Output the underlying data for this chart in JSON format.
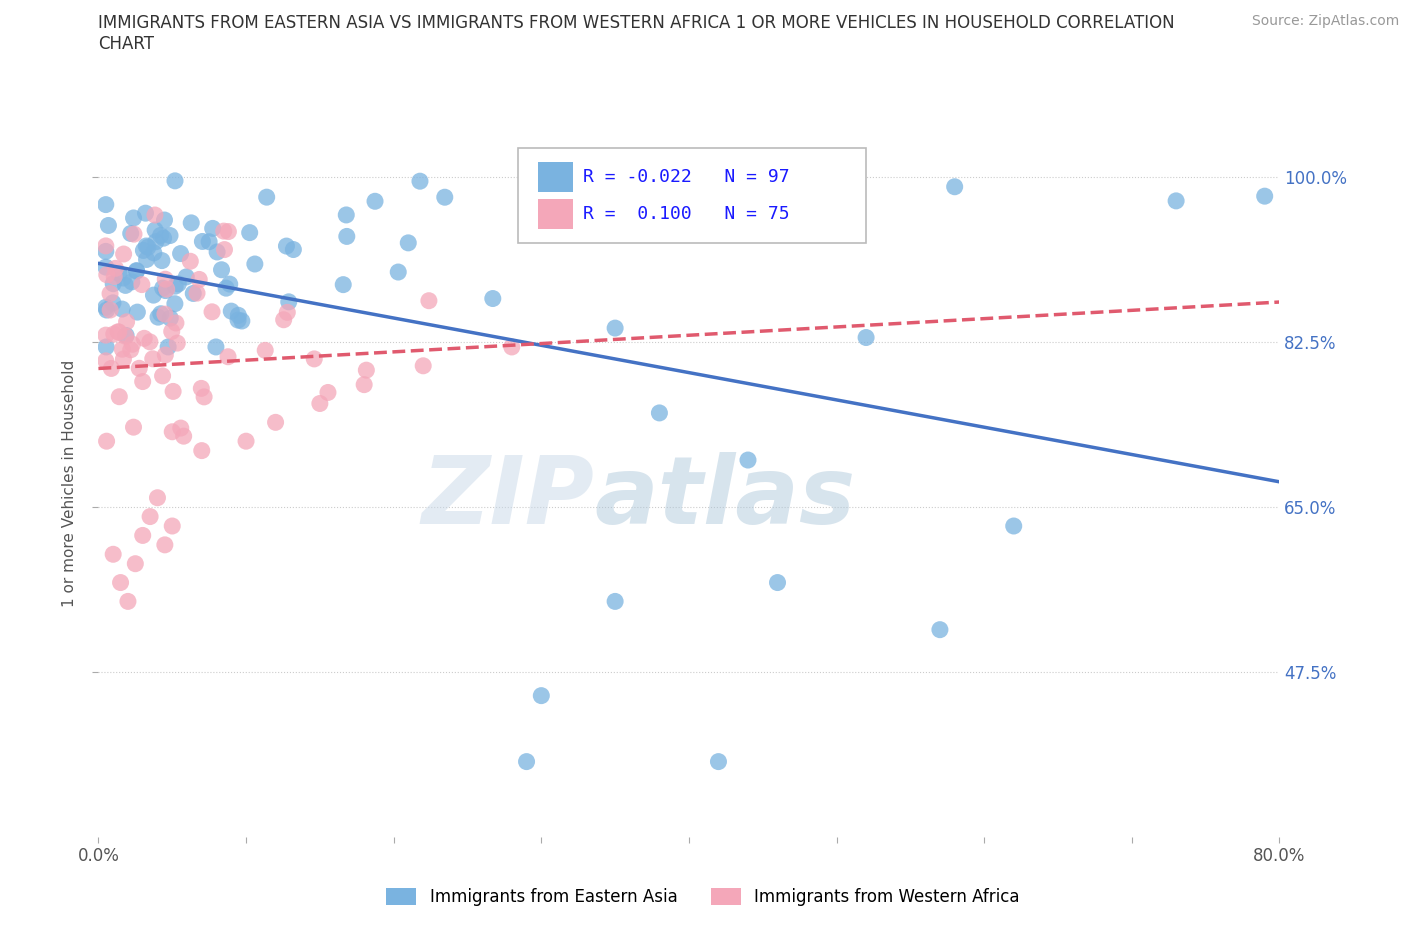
{
  "title_line1": "IMMIGRANTS FROM EASTERN ASIA VS IMMIGRANTS FROM WESTERN AFRICA 1 OR MORE VEHICLES IN HOUSEHOLD CORRELATION",
  "title_line2": "CHART",
  "source_text": "Source: ZipAtlas.com",
  "ylabel": "1 or more Vehicles in Household",
  "xlim": [
    0.0,
    0.8
  ],
  "ylim": [
    0.3,
    1.05
  ],
  "R_eastern": -0.022,
  "N_eastern": 97,
  "R_western": 0.1,
  "N_western": 75,
  "color_eastern": "#7ab3e0",
  "color_western": "#f4a7b9",
  "trendline_eastern_color": "#4472c4",
  "trendline_western_color": "#e05a6e",
  "legend_label_eastern": "Immigrants from Eastern Asia",
  "legend_label_western": "Immigrants from Western Africa",
  "watermark_zip": "ZIP",
  "watermark_atlas": "atlas",
  "background_color": "#ffffff",
  "ytick_positions": [
    0.475,
    0.65,
    0.825,
    1.0
  ],
  "ytick_labels": [
    "47.5%",
    "65.0%",
    "82.5%",
    "100.0%"
  ]
}
